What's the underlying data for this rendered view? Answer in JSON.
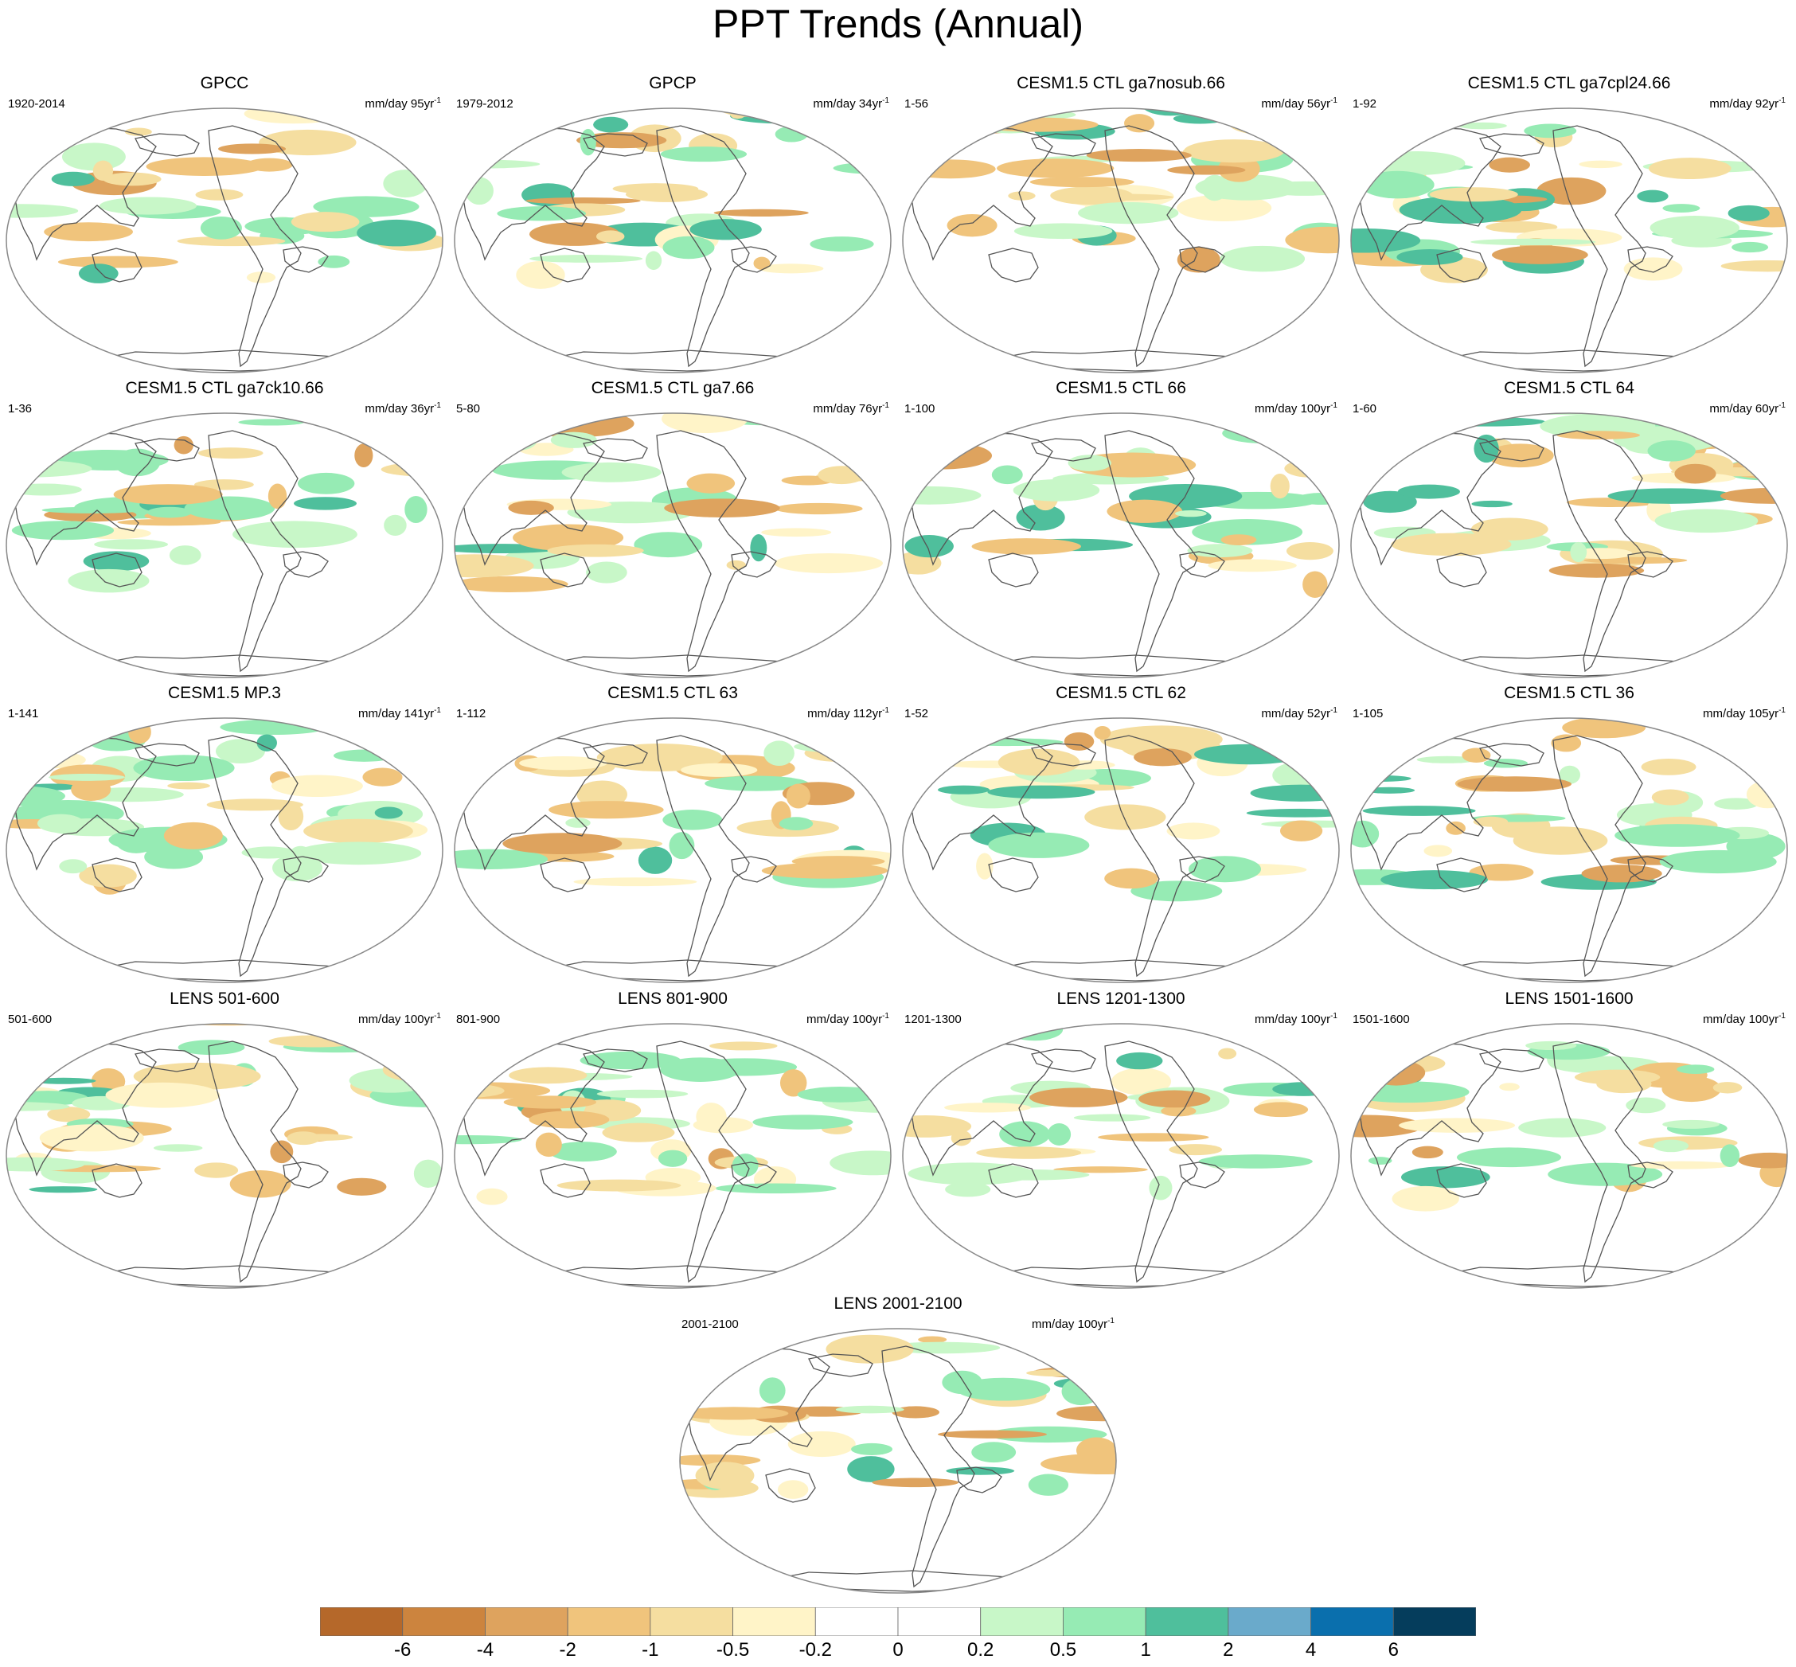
{
  "title": "PPT Trends (Annual)",
  "units_prefix": "mm/day",
  "panels": [
    {
      "title": "GPCC",
      "period": "1920-2014",
      "trend_years": "95"
    },
    {
      "title": "GPCP",
      "period": "1979-2012",
      "trend_years": "34"
    },
    {
      "title": "CESM1.5 CTL ga7nosub.66",
      "period": "1-56",
      "trend_years": "56"
    },
    {
      "title": "CESM1.5 CTL ga7cpl24.66",
      "period": "1-92",
      "trend_years": "92"
    },
    {
      "title": "CESM1.5 CTL ga7ck10.66",
      "period": "1-36",
      "trend_years": "36"
    },
    {
      "title": "CESM1.5 CTL ga7.66",
      "period": "5-80",
      "trend_years": "76"
    },
    {
      "title": "CESM1.5 CTL 66",
      "period": "1-100",
      "trend_years": "100"
    },
    {
      "title": "CESM1.5 CTL 64",
      "period": "1-60",
      "trend_years": "60"
    },
    {
      "title": "CESM1.5 MP.3",
      "period": "1-141",
      "trend_years": "141"
    },
    {
      "title": "CESM1.5 CTL 63",
      "period": "1-112",
      "trend_years": "112"
    },
    {
      "title": "CESM1.5 CTL 62",
      "period": "1-52",
      "trend_years": "52"
    },
    {
      "title": "CESM1.5 CTL 36",
      "period": "1-105",
      "trend_years": "105"
    },
    {
      "title": "LENS 501-600",
      "period": "501-600",
      "trend_years": "100"
    },
    {
      "title": "LENS 801-900",
      "period": "801-900",
      "trend_years": "100"
    },
    {
      "title": "LENS 1201-1300",
      "period": "1201-1300",
      "trend_years": "100"
    },
    {
      "title": "LENS 1501-1600",
      "period": "1501-1600",
      "trend_years": "100"
    },
    {
      "title": "LENS 2001-2100",
      "period": "2001-2100",
      "trend_years": "100"
    }
  ],
  "colorbar": {
    "labels": [
      "-6",
      "-4",
      "-2",
      "-1",
      "-0.5",
      "-0.2",
      "0",
      "0.2",
      "0.5",
      "1",
      "2",
      "4",
      "6"
    ],
    "colors": [
      "#b5682a",
      "#cc843e",
      "#dea35e",
      "#f0c47c",
      "#f5dea0",
      "#fff4c8",
      "#ffffff",
      "#ffffff",
      "#c8f7c8",
      "#96ebb4",
      "#4fbf9c",
      "#6aaacb",
      "#0a6fad",
      "#053d5c"
    ]
  },
  "palette": {
    "frame": "#888888",
    "coast": "#555555"
  }
}
